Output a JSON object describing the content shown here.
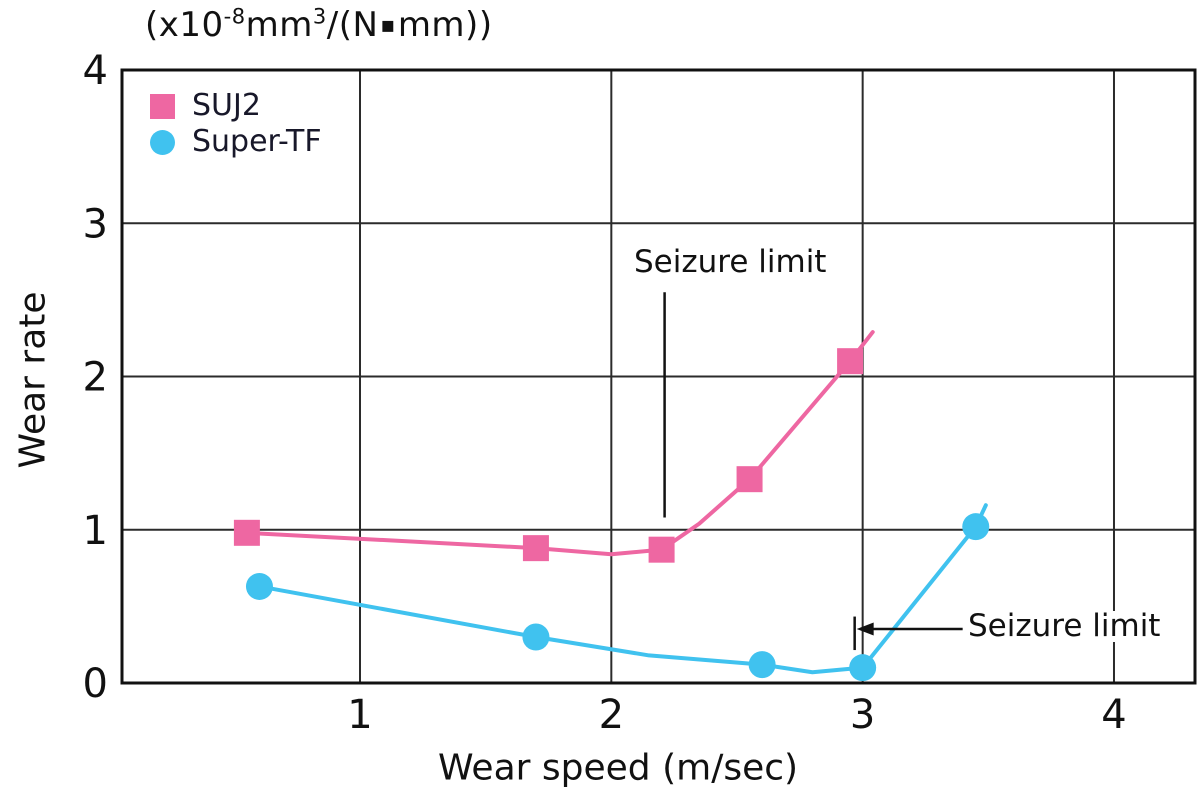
{
  "unit_label": {
    "p1": "(x10",
    "sup1": "-8",
    "p2": "mm",
    "sup2": "3",
    "p3": "/(N",
    "dot": "▪",
    "p4": "mm))"
  },
  "chart_data": {
    "type": "line",
    "title": "(x10⁻⁸mm³/(N▪mm))",
    "xlabel": "Wear speed (m/sec)",
    "ylabel": "Wear rate",
    "xlim": [
      0.05,
      4.32
    ],
    "ylim": [
      0,
      4
    ],
    "x_ticks": [
      "1",
      "2",
      "3",
      "4"
    ],
    "y_ticks": [
      "0",
      "1",
      "2",
      "3",
      "4"
    ],
    "grid": true,
    "legend_position": "top-left-inside",
    "colors": {
      "grid": "#2b2b2b",
      "border": "#111111",
      "text": "#111111"
    },
    "series": [
      {
        "name": "SUJ2",
        "marker": "square",
        "color": "#ee67a2",
        "points": [
          [
            0.55,
            0.98
          ],
          [
            1.7,
            0.88
          ],
          [
            2.2,
            0.87
          ],
          [
            2.55,
            1.33
          ],
          [
            2.95,
            2.1
          ]
        ],
        "line_points": [
          [
            0.55,
            0.98
          ],
          [
            1.7,
            0.88
          ],
          [
            2.0,
            0.84
          ],
          [
            2.2,
            0.87
          ],
          [
            2.35,
            1.04
          ],
          [
            2.55,
            1.33
          ],
          [
            2.95,
            2.1
          ],
          [
            3.04,
            2.29
          ]
        ]
      },
      {
        "name": "Super-TF",
        "marker": "circle",
        "color": "#40c2ef",
        "points": [
          [
            0.6,
            0.63
          ],
          [
            1.7,
            0.3
          ],
          [
            2.6,
            0.12
          ],
          [
            3.0,
            0.1
          ],
          [
            3.45,
            1.02
          ]
        ],
        "line_points": [
          [
            0.6,
            0.63
          ],
          [
            1.7,
            0.3
          ],
          [
            2.15,
            0.18
          ],
          [
            2.6,
            0.12
          ],
          [
            2.8,
            0.07
          ],
          [
            3.0,
            0.1
          ],
          [
            3.45,
            1.02
          ],
          [
            3.49,
            1.16
          ]
        ]
      }
    ],
    "annotations": [
      {
        "text": "Seizure limit",
        "series": "SUJ2",
        "x": 2.2,
        "style": "vertical-line",
        "line_y_from": 2.55,
        "line_y_to": 1.08
      },
      {
        "text": "Seizure limit",
        "series": "Super-TF",
        "x": 3.0,
        "style": "tick-with-left-arrow",
        "arrow_y": 0.352
      }
    ]
  }
}
